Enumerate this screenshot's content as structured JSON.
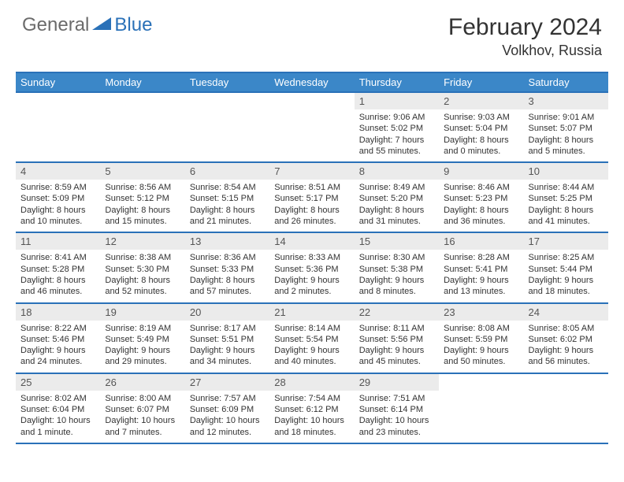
{
  "logo": {
    "general": "General",
    "blue": "Blue"
  },
  "title": "February 2024",
  "location": "Volkhov, Russia",
  "colors": {
    "header_bg": "#3b87c8",
    "border": "#2a71b8",
    "daynum_bg": "#ebebeb"
  },
  "day_headers": [
    "Sunday",
    "Monday",
    "Tuesday",
    "Wednesday",
    "Thursday",
    "Friday",
    "Saturday"
  ],
  "weeks": [
    [
      null,
      null,
      null,
      null,
      {
        "n": "1",
        "sr": "9:06 AM",
        "ss": "5:02 PM",
        "dl": "7 hours and 55 minutes."
      },
      {
        "n": "2",
        "sr": "9:03 AM",
        "ss": "5:04 PM",
        "dl": "8 hours and 0 minutes."
      },
      {
        "n": "3",
        "sr": "9:01 AM",
        "ss": "5:07 PM",
        "dl": "8 hours and 5 minutes."
      }
    ],
    [
      {
        "n": "4",
        "sr": "8:59 AM",
        "ss": "5:09 PM",
        "dl": "8 hours and 10 minutes."
      },
      {
        "n": "5",
        "sr": "8:56 AM",
        "ss": "5:12 PM",
        "dl": "8 hours and 15 minutes."
      },
      {
        "n": "6",
        "sr": "8:54 AM",
        "ss": "5:15 PM",
        "dl": "8 hours and 21 minutes."
      },
      {
        "n": "7",
        "sr": "8:51 AM",
        "ss": "5:17 PM",
        "dl": "8 hours and 26 minutes."
      },
      {
        "n": "8",
        "sr": "8:49 AM",
        "ss": "5:20 PM",
        "dl": "8 hours and 31 minutes."
      },
      {
        "n": "9",
        "sr": "8:46 AM",
        "ss": "5:23 PM",
        "dl": "8 hours and 36 minutes."
      },
      {
        "n": "10",
        "sr": "8:44 AM",
        "ss": "5:25 PM",
        "dl": "8 hours and 41 minutes."
      }
    ],
    [
      {
        "n": "11",
        "sr": "8:41 AM",
        "ss": "5:28 PM",
        "dl": "8 hours and 46 minutes."
      },
      {
        "n": "12",
        "sr": "8:38 AM",
        "ss": "5:30 PM",
        "dl": "8 hours and 52 minutes."
      },
      {
        "n": "13",
        "sr": "8:36 AM",
        "ss": "5:33 PM",
        "dl": "8 hours and 57 minutes."
      },
      {
        "n": "14",
        "sr": "8:33 AM",
        "ss": "5:36 PM",
        "dl": "9 hours and 2 minutes."
      },
      {
        "n": "15",
        "sr": "8:30 AM",
        "ss": "5:38 PM",
        "dl": "9 hours and 8 minutes."
      },
      {
        "n": "16",
        "sr": "8:28 AM",
        "ss": "5:41 PM",
        "dl": "9 hours and 13 minutes."
      },
      {
        "n": "17",
        "sr": "8:25 AM",
        "ss": "5:44 PM",
        "dl": "9 hours and 18 minutes."
      }
    ],
    [
      {
        "n": "18",
        "sr": "8:22 AM",
        "ss": "5:46 PM",
        "dl": "9 hours and 24 minutes."
      },
      {
        "n": "19",
        "sr": "8:19 AM",
        "ss": "5:49 PM",
        "dl": "9 hours and 29 minutes."
      },
      {
        "n": "20",
        "sr": "8:17 AM",
        "ss": "5:51 PM",
        "dl": "9 hours and 34 minutes."
      },
      {
        "n": "21",
        "sr": "8:14 AM",
        "ss": "5:54 PM",
        "dl": "9 hours and 40 minutes."
      },
      {
        "n": "22",
        "sr": "8:11 AM",
        "ss": "5:56 PM",
        "dl": "9 hours and 45 minutes."
      },
      {
        "n": "23",
        "sr": "8:08 AM",
        "ss": "5:59 PM",
        "dl": "9 hours and 50 minutes."
      },
      {
        "n": "24",
        "sr": "8:05 AM",
        "ss": "6:02 PM",
        "dl": "9 hours and 56 minutes."
      }
    ],
    [
      {
        "n": "25",
        "sr": "8:02 AM",
        "ss": "6:04 PM",
        "dl": "10 hours and 1 minute."
      },
      {
        "n": "26",
        "sr": "8:00 AM",
        "ss": "6:07 PM",
        "dl": "10 hours and 7 minutes."
      },
      {
        "n": "27",
        "sr": "7:57 AM",
        "ss": "6:09 PM",
        "dl": "10 hours and 12 minutes."
      },
      {
        "n": "28",
        "sr": "7:54 AM",
        "ss": "6:12 PM",
        "dl": "10 hours and 18 minutes."
      },
      {
        "n": "29",
        "sr": "7:51 AM",
        "ss": "6:14 PM",
        "dl": "10 hours and 23 minutes."
      },
      null,
      null
    ]
  ],
  "labels": {
    "sunrise": "Sunrise: ",
    "sunset": "Sunset: ",
    "daylight": "Daylight: "
  }
}
